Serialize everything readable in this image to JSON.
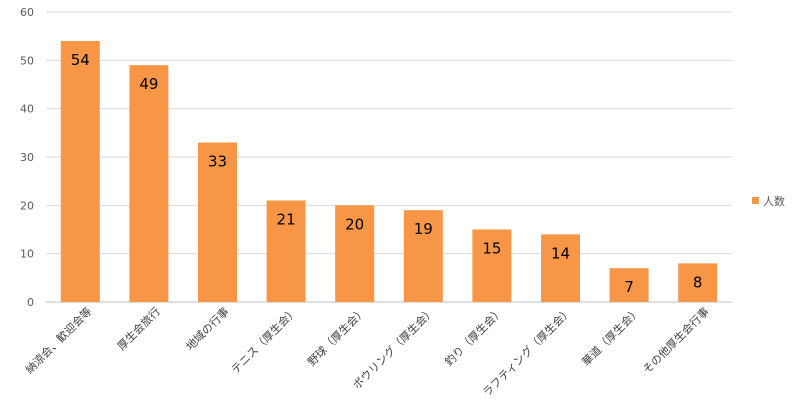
{
  "chart_data": {
    "type": "bar",
    "categories": [
      "納涼会、歓迎会等",
      "厚生会旅行",
      "地域の行事",
      "テニス（厚生会）",
      "野球（厚生会）",
      "ボウリング（厚生会）",
      "釣り（厚生会）",
      "ラフティング（厚生会）",
      "華道（厚生会）",
      "その他厚生会行事"
    ],
    "series": [
      {
        "name": "人数",
        "values": [
          54,
          49,
          33,
          21,
          20,
          19,
          15,
          14,
          7,
          8
        ]
      }
    ],
    "ylim": [
      0,
      60
    ],
    "yticks": [
      0,
      10,
      20,
      30,
      40,
      50,
      60
    ],
    "grid": true,
    "data_labels": true,
    "legend": "right",
    "colors": {
      "bar": "#f79646",
      "grid": "#d9d9d9",
      "axis": "#bfbfbf"
    }
  }
}
